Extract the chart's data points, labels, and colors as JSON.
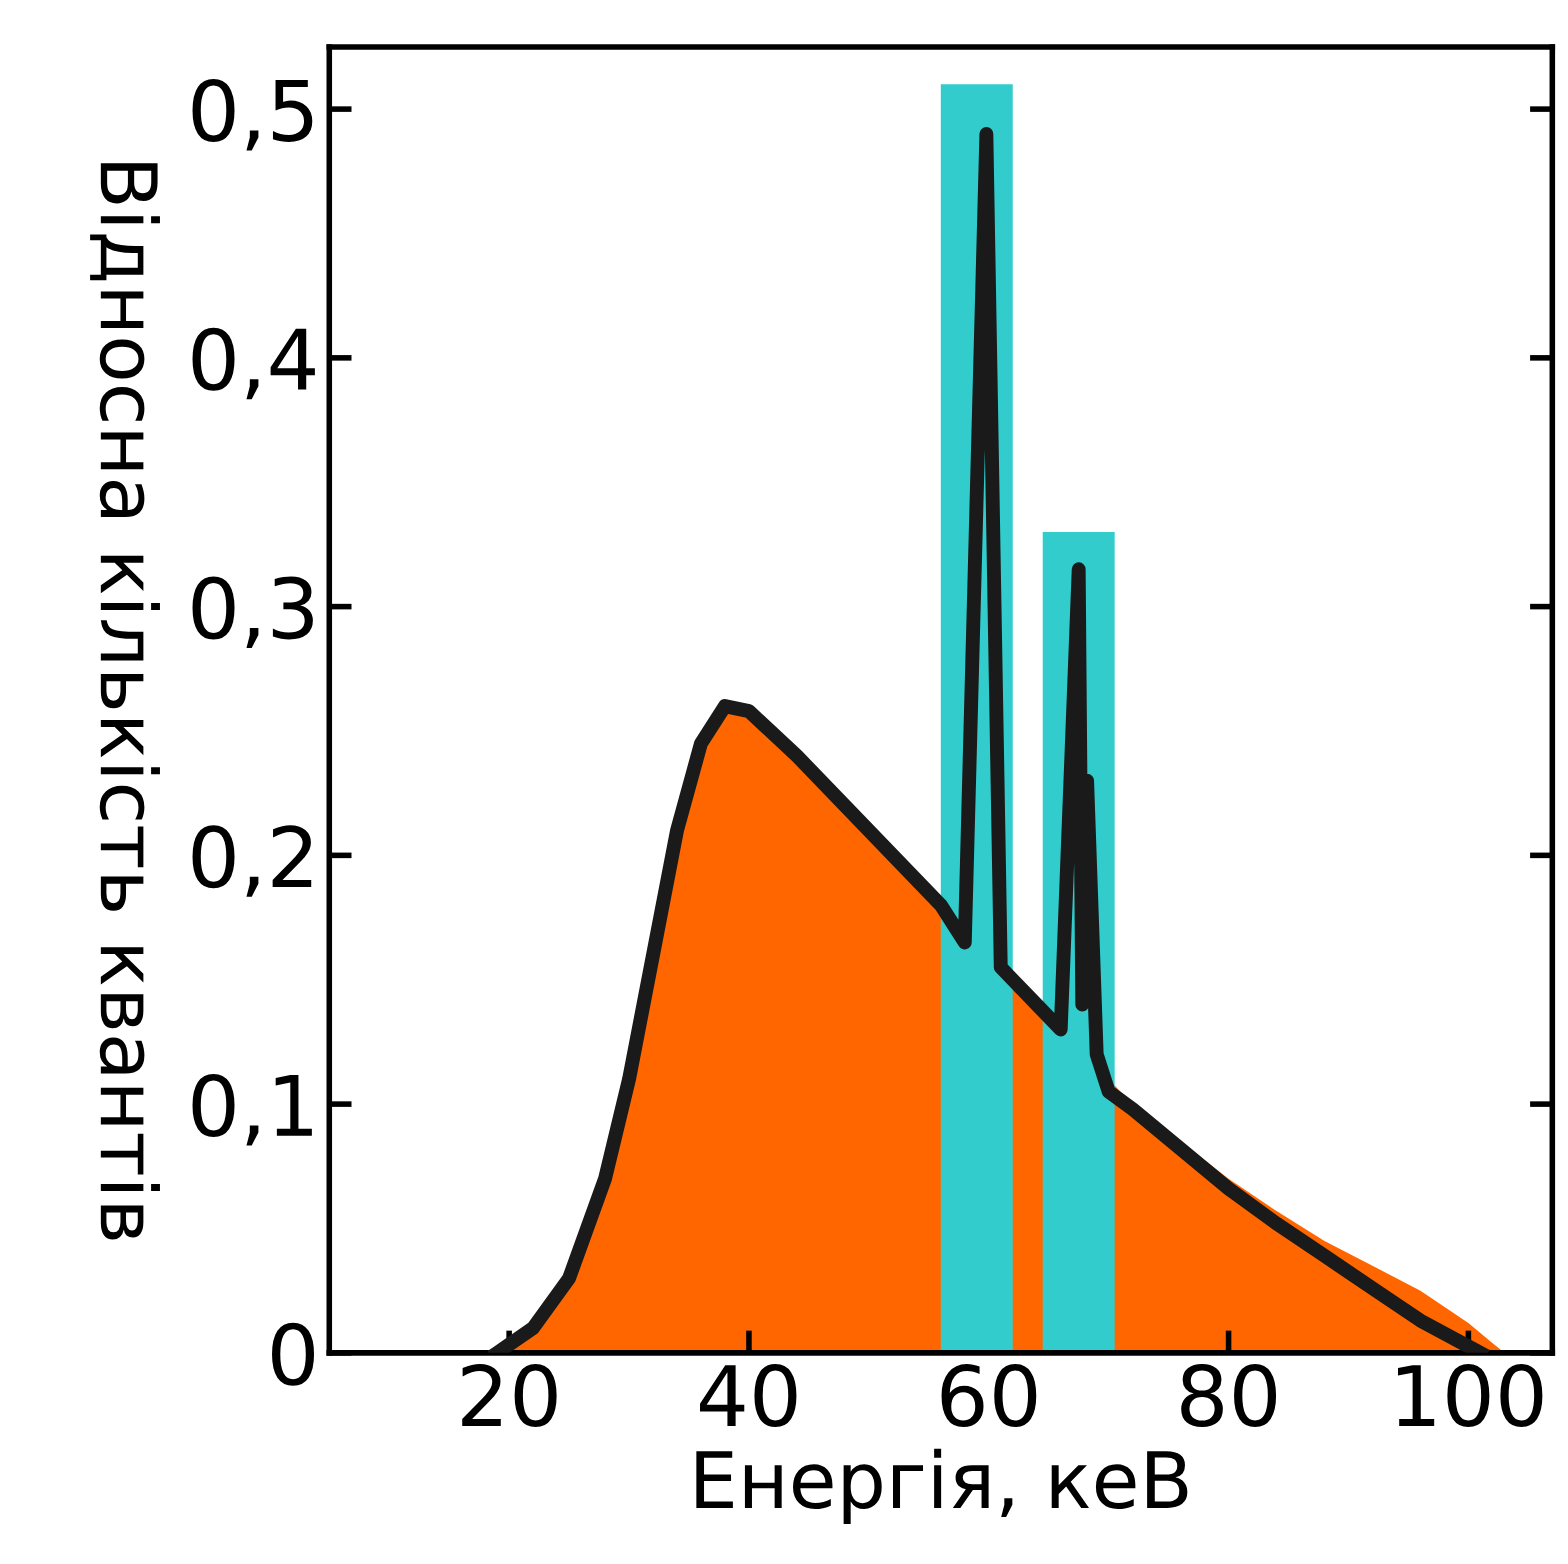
{
  "chart_data": {
    "type": "line",
    "xlabel": "Енергія, кеВ",
    "ylabel": "Відносна кількість квантів",
    "xlim": [
      5,
      107
    ],
    "ylim": [
      0,
      0.525
    ],
    "xticks": [
      20,
      40,
      60,
      80,
      100
    ],
    "yticks": [
      {
        "value": 0,
        "label": "0"
      },
      {
        "value": 0.1,
        "label": "0,1"
      },
      {
        "value": 0.2,
        "label": "0,2"
      },
      {
        "value": 0.3,
        "label": "0,3"
      },
      {
        "value": 0.4,
        "label": "0,4"
      },
      {
        "value": 0.5,
        "label": "0,5"
      }
    ],
    "grid": false,
    "legend": false,
    "series": [
      {
        "type": "area",
        "color": "#ff6600",
        "x": [
          19,
          22,
          25,
          28,
          30,
          32,
          34,
          36,
          38,
          40,
          44,
          48,
          52,
          55,
          63,
          71,
          76,
          80,
          84,
          88,
          92,
          96,
          100,
          102,
          103
        ],
        "values": [
          0,
          0.01,
          0.03,
          0.07,
          0.11,
          0.16,
          0.21,
          0.245,
          0.26,
          0.258,
          0.24,
          0.22,
          0.2,
          0.185,
          0.145,
          0.105,
          0.085,
          0.07,
          0.057,
          0.045,
          0.035,
          0.025,
          0.012,
          0.004,
          0
        ]
      },
      {
        "type": "bar",
        "color": "#33cccc",
        "x": [
          59,
          67.5
        ],
        "values": [
          0.51,
          0.33
        ]
      },
      {
        "color": "#1a1a1a",
        "x": [
          19,
          22,
          25,
          28,
          30,
          32,
          34,
          36,
          38,
          40,
          44,
          48,
          52,
          56,
          58,
          59.8,
          61,
          62,
          64,
          66,
          67.5,
          67.8,
          68.2,
          69,
          70,
          72,
          76,
          80,
          84,
          88,
          92,
          96,
          101
        ],
        "values": [
          0,
          0.01,
          0.03,
          0.07,
          0.11,
          0.16,
          0.21,
          0.245,
          0.26,
          0.258,
          0.24,
          0.22,
          0.2,
          0.18,
          0.165,
          0.49,
          0.155,
          0.15,
          0.14,
          0.13,
          0.315,
          0.14,
          0.23,
          0.12,
          0.105,
          0.098,
          0.082,
          0.066,
          0.052,
          0.039,
          0.026,
          0.013,
          0
        ]
      }
    ]
  }
}
